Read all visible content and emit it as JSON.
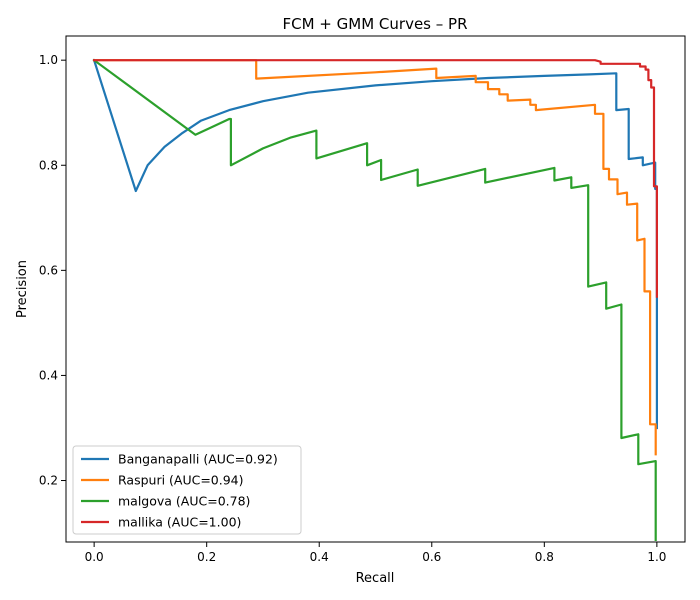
{
  "chart_data": {
    "type": "line",
    "title": "FCM + GMM Curves – PR",
    "xlabel": "Recall",
    "ylabel": "Precision",
    "xlim": [
      -0.05,
      1.05
    ],
    "ylim": [
      0.083,
      1.046
    ],
    "xticks": [
      0.0,
      0.2,
      0.4,
      0.6,
      0.8,
      1.0
    ],
    "xtick_labels": [
      "0.0",
      "0.2",
      "0.4",
      "0.6",
      "0.8",
      "1.0"
    ],
    "yticks": [
      0.2,
      0.4,
      0.6,
      0.8,
      1.0
    ],
    "ytick_labels": [
      "0.2",
      "0.4",
      "0.6",
      "0.8",
      "1.0"
    ],
    "grid": false,
    "legend_position": "lower-left",
    "series": [
      {
        "name": "Banganapalli (AUC=0.92)",
        "color": "#1f77b4",
        "x": [
          0.0,
          0.074,
          0.095,
          0.125,
          0.155,
          0.19,
          0.24,
          0.3,
          0.38,
          0.5,
          0.6,
          0.7,
          0.8,
          0.88,
          0.928,
          0.928,
          0.95,
          0.95,
          0.975,
          0.975,
          0.997,
          0.997,
          1.0,
          1.0
        ],
        "y": [
          1.0,
          0.751,
          0.8,
          0.835,
          0.86,
          0.885,
          0.905,
          0.922,
          0.938,
          0.952,
          0.96,
          0.966,
          0.97,
          0.973,
          0.975,
          0.905,
          0.907,
          0.812,
          0.815,
          0.8,
          0.805,
          0.755,
          0.755,
          0.3
        ]
      },
      {
        "name": "Raspuri (AUC=0.94)",
        "color": "#ff7f0e",
        "x": [
          0.0,
          0.288,
          0.288,
          0.5,
          0.608,
          0.608,
          0.678,
          0.678,
          0.7,
          0.7,
          0.72,
          0.72,
          0.735,
          0.735,
          0.775,
          0.775,
          0.785,
          0.785,
          0.89,
          0.89,
          0.905,
          0.905,
          0.915,
          0.915,
          0.93,
          0.93,
          0.947,
          0.947,
          0.965,
          0.965,
          0.978,
          0.978,
          0.988,
          0.988,
          0.998,
          0.998
        ],
        "y": [
          1.0,
          1.0,
          0.965,
          0.977,
          0.984,
          0.966,
          0.97,
          0.958,
          0.958,
          0.945,
          0.945,
          0.935,
          0.935,
          0.923,
          0.925,
          0.915,
          0.915,
          0.905,
          0.915,
          0.898,
          0.898,
          0.793,
          0.793,
          0.773,
          0.773,
          0.745,
          0.748,
          0.725,
          0.727,
          0.657,
          0.66,
          0.56,
          0.56,
          0.307,
          0.307,
          0.25
        ]
      },
      {
        "name": "malgova (AUC=0.78)",
        "color": "#2ca02c",
        "x": [
          0.0,
          0.18,
          0.24,
          0.243,
          0.243,
          0.3,
          0.35,
          0.395,
          0.395,
          0.485,
          0.485,
          0.51,
          0.51,
          0.575,
          0.575,
          0.695,
          0.695,
          0.818,
          0.818,
          0.848,
          0.848,
          0.878,
          0.878,
          0.91,
          0.91,
          0.937,
          0.937,
          0.967,
          0.967,
          0.998,
          0.998
        ],
        "y": [
          1.0,
          0.858,
          0.888,
          0.888,
          0.8,
          0.832,
          0.853,
          0.866,
          0.813,
          0.842,
          0.8,
          0.81,
          0.772,
          0.792,
          0.761,
          0.793,
          0.767,
          0.795,
          0.771,
          0.777,
          0.757,
          0.762,
          0.569,
          0.577,
          0.527,
          0.535,
          0.281,
          0.288,
          0.231,
          0.237,
          0.087
        ]
      },
      {
        "name": "mallika (AUC=1.00)",
        "color": "#d62728",
        "x": [
          0.0,
          0.89,
          0.9,
          0.9,
          0.97,
          0.97,
          0.98,
          0.98,
          0.985,
          0.985,
          0.99,
          0.99,
          0.995,
          0.995,
          1.0,
          1.0
        ],
        "y": [
          1.0,
          1.0,
          0.997,
          0.993,
          0.993,
          0.988,
          0.988,
          0.982,
          0.982,
          0.962,
          0.962,
          0.948,
          0.948,
          0.76,
          0.76,
          0.55
        ]
      }
    ]
  }
}
